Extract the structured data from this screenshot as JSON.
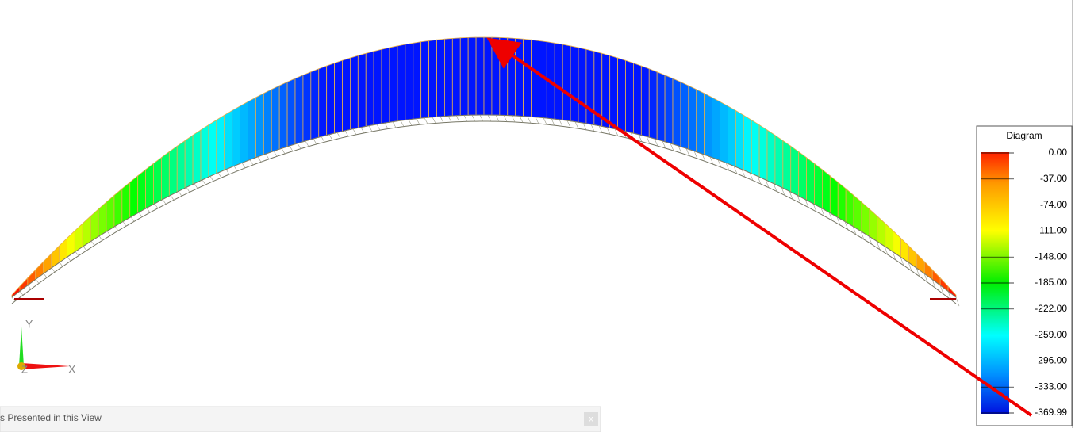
{
  "legend": {
    "title": "Diagram",
    "labels": [
      "0.00",
      "-37.00",
      "-74.00",
      "-111.00",
      "-148.00",
      "-185.00",
      "-222.00",
      "-259.00",
      "-296.00",
      "-333.00",
      "-369.99"
    ]
  },
  "axes": {
    "y": "Y",
    "x": "X",
    "z": "Z"
  },
  "status_bar": {
    "text": "s Presented in this View",
    "close": "x"
  }
}
